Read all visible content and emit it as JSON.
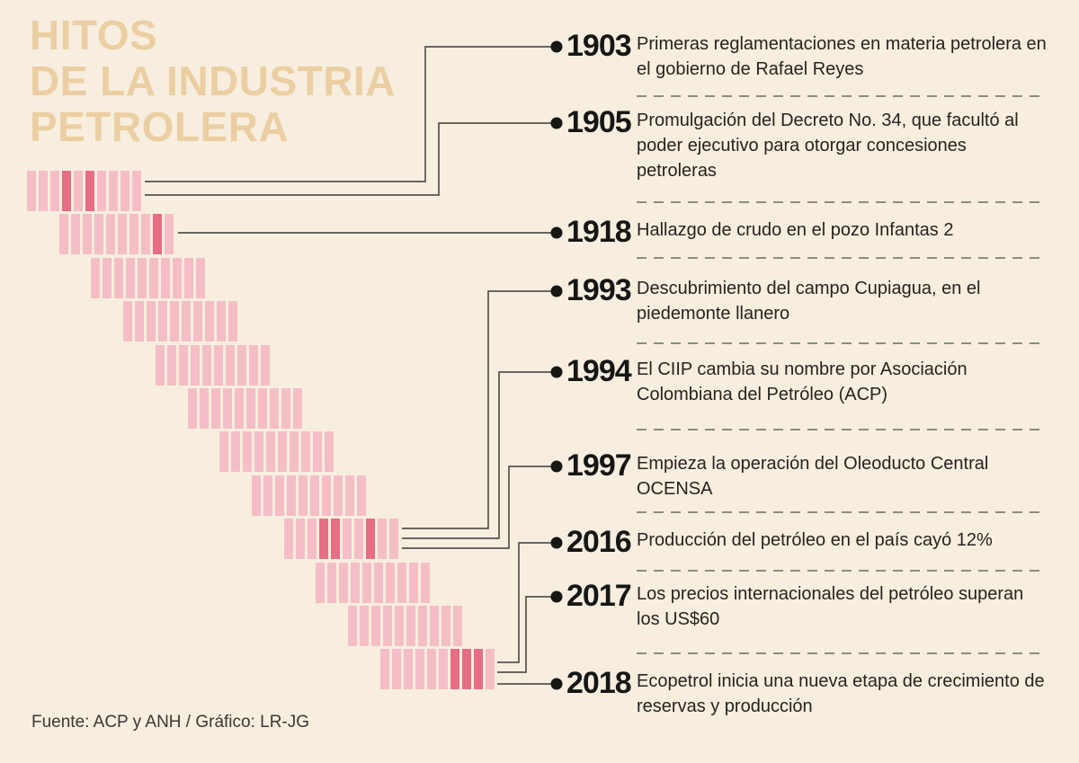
{
  "title": {
    "text": "HITOS\nDE LA INDUSTRIA\nPETROLERA"
  },
  "footer": {
    "text": "Fuente: ACP y ANH / Gráfico: LR-JG"
  },
  "colors": {
    "background": "#f7eee0",
    "title": "#ebcfa2",
    "bar_light": "#f5bec6",
    "bar_highlight": "#e66d85",
    "connector_line": "#55534d",
    "bullet": "#161613",
    "divider_dash": "#8d8b81",
    "text": "#26231e"
  },
  "bars": {
    "rows": 12,
    "segments_per_row": 10,
    "highlighted_segments": [
      {
        "row": 1,
        "segments": [
          4,
          6
        ]
      },
      {
        "row": 2,
        "segments": [
          9
        ]
      },
      {
        "row": 9,
        "segments": [
          4,
          5,
          8
        ]
      },
      {
        "row": 12,
        "segments": [
          7,
          8,
          9
        ]
      }
    ]
  },
  "timeline": {
    "entries": [
      {
        "year": "1903",
        "text": "Primeras reglamentaciones en materia petrolera en el gobierno de Rafael Reyes"
      },
      {
        "year": "1905",
        "text": "Promulgación del Decreto No. 34, que facultó al poder ejecutivo para otorgar concesiones petroleras"
      },
      {
        "year": "1918",
        "text": "Hallazgo de crudo en el pozo Infantas 2"
      },
      {
        "year": "1993",
        "text": "Descubrimiento del campo Cupiagua, en el piedemonte llanero"
      },
      {
        "year": "1994",
        "text": "El CIIP cambia su nombre por Asociación Colombiana del Petróleo (ACP)"
      },
      {
        "year": "1997",
        "text": "Empieza la operación del Oleoducto Central OCENSA"
      },
      {
        "year": "2016",
        "text": "Producción del petróleo en el país cayó 12%"
      },
      {
        "year": "2017",
        "text": "Los precios internacionales del petróleo superan los US$60"
      },
      {
        "year": "2018",
        "text": "Ecopetrol inicia una nueva etapa de crecimiento de reservas y producción"
      }
    ]
  }
}
